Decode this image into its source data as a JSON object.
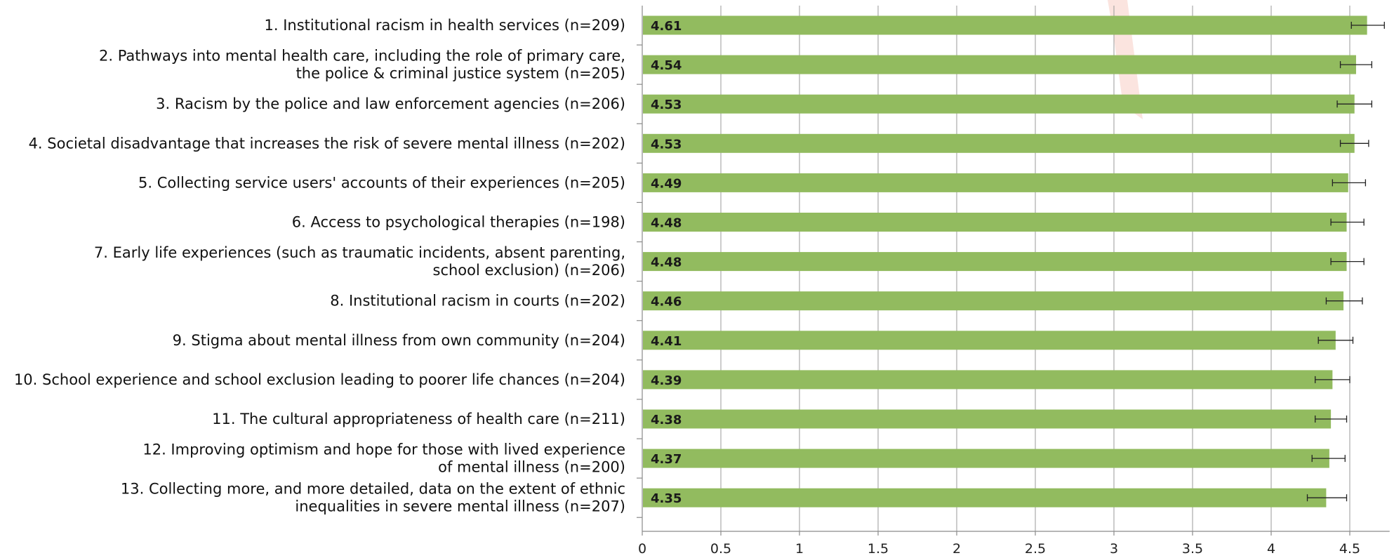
{
  "chart_data": {
    "type": "bar",
    "orientation": "horizontal",
    "title": "",
    "xlabel": "",
    "ylabel": "",
    "xlim": [
      0,
      4.7
    ],
    "xticks": [
      0,
      0.5,
      1,
      1.5,
      2,
      2.5,
      3,
      3.5,
      4,
      4.5
    ],
    "xtick_labels": [
      "0",
      "0.5",
      "1",
      "1.5",
      "2",
      "2.5",
      "3",
      "3.5",
      "4",
      "4.5"
    ],
    "grid": true,
    "bar_color": "#92bb5f",
    "categories": [
      [
        "1. Institutional racism in health services (n=209)"
      ],
      [
        "2. Pathways into mental health care, including the role of primary care,",
        "the police & criminal justice system (n=205)"
      ],
      [
        "3. Racism by the police and law enforcement agencies (n=206)"
      ],
      [
        "4. Societal disadvantage that increases the risk of severe mental illness (n=202)"
      ],
      [
        "5. Collecting service users' accounts of their experiences (n=205)"
      ],
      [
        "6. Access to psychological therapies (n=198)"
      ],
      [
        "7. Early life experiences (such as traumatic incidents, absent parenting,",
        "school exclusion) (n=206)"
      ],
      [
        "8. Institutional racism in courts (n=202)"
      ],
      [
        "9. Stigma about mental illness from own community (n=204)"
      ],
      [
        "10. School experience and school exclusion leading to poorer life chances (n=204)"
      ],
      [
        "11. The cultural appropriateness of health care (n=211)"
      ],
      [
        "12. Improving optimism and hope for those with lived experience",
        "of mental illness (n=200)"
      ],
      [
        "13. Collecting more, and more detailed, data on the extent of ethnic",
        "inequalities in severe mental illness (n=207)"
      ]
    ],
    "values": [
      4.61,
      4.54,
      4.53,
      4.53,
      4.49,
      4.48,
      4.48,
      4.46,
      4.41,
      4.39,
      4.38,
      4.37,
      4.35
    ],
    "data_labels": [
      "4.61",
      "4.54",
      "4.53",
      "4.53",
      "4.49",
      "4.48",
      "4.48",
      "4.46",
      "4.41",
      "4.39",
      "4.38",
      "4.37",
      "4.35"
    ],
    "error_low": [
      4.51,
      4.44,
      4.42,
      4.44,
      4.39,
      4.38,
      4.38,
      4.35,
      4.3,
      4.28,
      4.28,
      4.26,
      4.23
    ],
    "error_high": [
      4.72,
      4.64,
      4.64,
      4.62,
      4.6,
      4.59,
      4.59,
      4.58,
      4.52,
      4.5,
      4.48,
      4.47,
      4.48
    ]
  }
}
